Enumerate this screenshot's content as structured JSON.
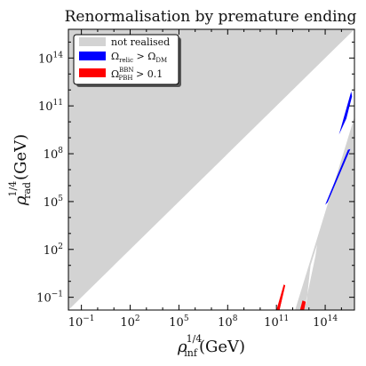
{
  "chart_data": {
    "type": "area",
    "title": "Renormalisation by premature ending",
    "xlabel_base": "ρ",
    "xlabel_sup": "1/4",
    "xlabel_sub": "inf",
    "xlabel_unit": "(GeV)",
    "ylabel_base": "ρ",
    "ylabel_sup": "1/4",
    "ylabel_sub": "rad",
    "ylabel_unit": "(GeV)",
    "xscale": "log10",
    "yscale": "log10",
    "xlim_log10": [
      -1.8,
      15.8
    ],
    "ylim_log10": [
      -1.8,
      15.8
    ],
    "xticks": [
      {
        "pow": -1,
        "base": "10",
        "exp": "−1"
      },
      {
        "pow": 2,
        "base": "10",
        "exp": "2"
      },
      {
        "pow": 5,
        "base": "10",
        "exp": "5"
      },
      {
        "pow": 8,
        "base": "10",
        "exp": "8"
      },
      {
        "pow": 11,
        "base": "10",
        "exp": "11"
      },
      {
        "pow": 14,
        "base": "10",
        "exp": "14"
      }
    ],
    "yticks": [
      {
        "pow": -1,
        "base": "10",
        "exp": "−1"
      },
      {
        "pow": 2,
        "base": "10",
        "exp": "2"
      },
      {
        "pow": 5,
        "base": "10",
        "exp": "5"
      },
      {
        "pow": 8,
        "base": "10",
        "exp": "8"
      },
      {
        "pow": 11,
        "base": "10",
        "exp": "11"
      },
      {
        "pow": 14,
        "base": "10",
        "exp": "14"
      }
    ],
    "legend_position": "top-left",
    "legend": [
      {
        "text": "not realised",
        "color": "#d3d3d3"
      },
      {
        "text": "Ω_relic > Ω_DM",
        "color": "#0000ff"
      },
      {
        "text": "Ω_PBH^BBN > 0.1",
        "color": "#ff0000"
      }
    ],
    "regions": [
      {
        "series": "not realised",
        "color": "#d3d3d3",
        "polygons_log10": [
          [
            [
              -1.8,
              -1.8
            ],
            [
              15.8,
              15.8
            ],
            [
              -1.8,
              15.8
            ]
          ],
          [
            [
              12.15,
              -1.8
            ],
            [
              15.8,
              10.3
            ],
            [
              15.8,
              -1.8
            ]
          ]
        ]
      },
      {
        "series": "Ω_relic > Ω_DM",
        "color": "#0000ff",
        "polygons_log10": [
          [
            [
              14.0,
              4.8
            ],
            [
              14.15,
              4.95
            ],
            [
              15.55,
              8.3
            ],
            [
              15.4,
              8.25
            ]
          ],
          [
            [
              14.85,
              9.2
            ],
            [
              15.6,
              11.9
            ],
            [
              15.65,
              11.6
            ],
            [
              15.3,
              10.2
            ]
          ]
        ]
      },
      {
        "series": "Ω_PBH^BBN > 0.1",
        "color": "#ff0000",
        "polygons_log10": [
          [
            [
              11.0,
              -1.8
            ],
            [
              11.45,
              -0.2
            ],
            [
              11.55,
              -0.25
            ],
            [
              11.2,
              -1.8
            ]
          ],
          [
            [
              12.45,
              -1.8
            ],
            [
              12.6,
              -1.2
            ],
            [
              12.85,
              -1.3
            ],
            [
              12.7,
              -1.8
            ]
          ]
        ]
      }
    ],
    "allowed_regions_log10": [
      [
        [
          11.2,
          -1.8
        ],
        [
          13.8,
          4.2
        ],
        [
          14.0,
          4.7
        ],
        [
          13.6,
          4.6
        ],
        [
          12.4,
          2.7
        ],
        [
          11.55,
          -0.25
        ]
      ],
      [
        [
          12.7,
          -1.8
        ],
        [
          13.4,
          1.6
        ],
        [
          13.5,
          2.3
        ],
        [
          13.1,
          1.0
        ],
        [
          12.85,
          -1.3
        ]
      ]
    ]
  }
}
